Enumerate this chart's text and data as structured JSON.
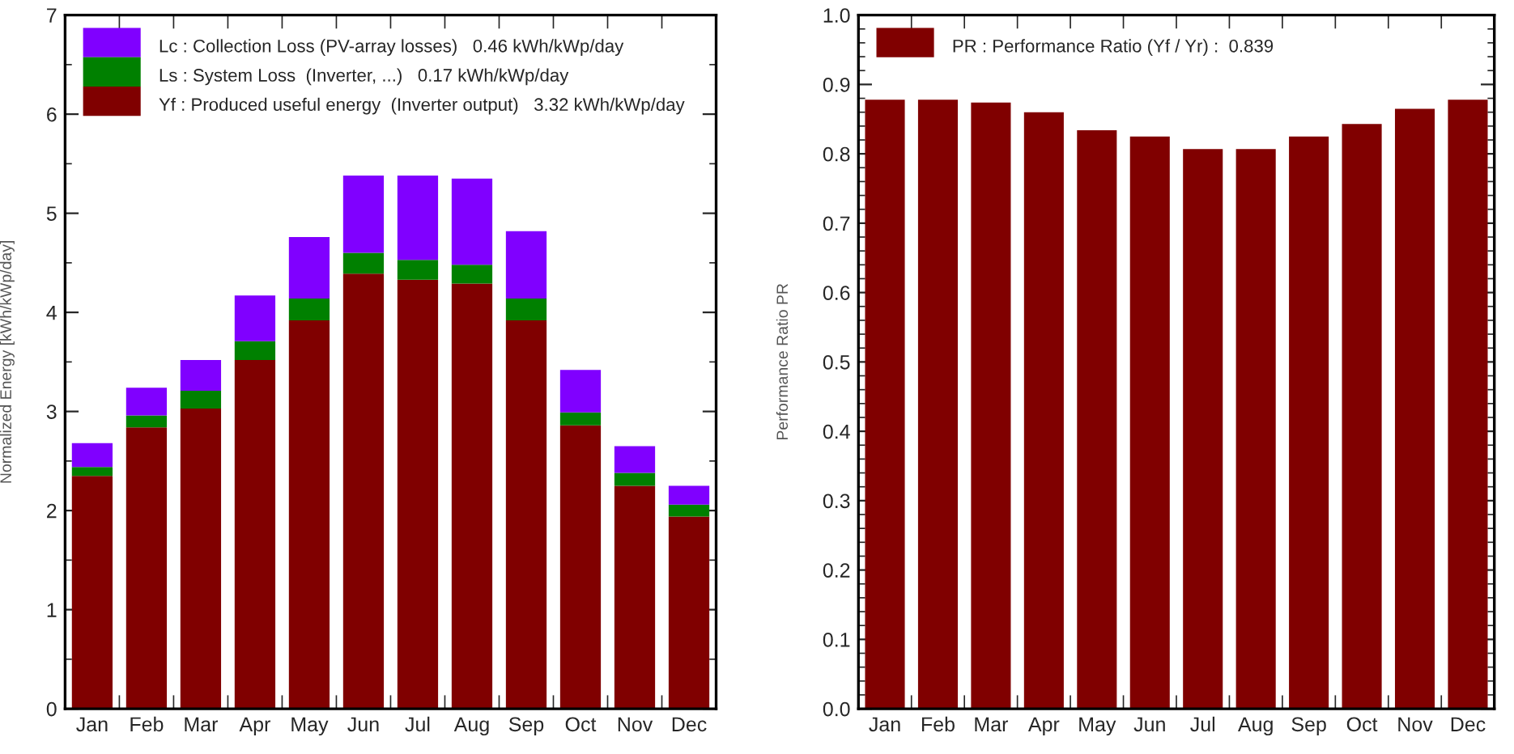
{
  "chart_data": [
    {
      "type": "bar",
      "stacked": true,
      "ylabel": "Normalized Energy [kWh/kWp/day]",
      "categories": [
        "Jan",
        "Feb",
        "Mar",
        "Apr",
        "May",
        "Jun",
        "Jul",
        "Aug",
        "Sep",
        "Oct",
        "Nov",
        "Dec"
      ],
      "series": [
        {
          "name": "Yf : Produced useful energy  (Inverter output)   3.32 kWh/kWp/day",
          "color": "#800000",
          "values": [
            2.35,
            2.84,
            3.03,
            3.52,
            3.92,
            4.39,
            4.33,
            4.29,
            3.92,
            2.86,
            2.25,
            1.94
          ]
        },
        {
          "name": "Ls : System Loss  (Inverter, ...)   0.17 kWh/kWp/day",
          "color": "#008000",
          "values": [
            0.09,
            0.12,
            0.18,
            0.19,
            0.22,
            0.21,
            0.2,
            0.19,
            0.22,
            0.13,
            0.13,
            0.12
          ]
        },
        {
          "name": "Lc : Collection Loss (PV-array losses)   0.46 kWh/kWp/day",
          "color": "#8000ff",
          "values": [
            0.24,
            0.28,
            0.31,
            0.46,
            0.62,
            0.78,
            0.85,
            0.87,
            0.68,
            0.43,
            0.27,
            0.19
          ]
        }
      ],
      "ylim": [
        0,
        7
      ],
      "yticks": [
        0,
        1,
        2,
        3,
        4,
        5,
        6,
        7
      ],
      "legend": "top left",
      "grid": false
    },
    {
      "type": "bar",
      "ylabel": "Performance Ratio PR",
      "categories": [
        "Jan",
        "Feb",
        "Mar",
        "Apr",
        "May",
        "Jun",
        "Jul",
        "Aug",
        "Sep",
        "Oct",
        "Nov",
        "Dec"
      ],
      "series": [
        {
          "name": "PR : Performance Ratio (Yf / Yr) :  0.839",
          "color": "#800000",
          "values": [
            0.878,
            0.878,
            0.874,
            0.86,
            0.834,
            0.825,
            0.807,
            0.807,
            0.825,
            0.843,
            0.865,
            0.878
          ]
        }
      ],
      "ylim": [
        0,
        1.0
      ],
      "yticks": [
        {
          "value": 0,
          "label": "0.0"
        },
        0.1,
        0.2,
        0.3,
        0.4,
        0.5,
        0.6,
        0.7,
        0.8,
        0.9,
        {
          "value": 1,
          "label": "1.0"
        }
      ],
      "legend": "top left",
      "grid": false
    }
  ]
}
